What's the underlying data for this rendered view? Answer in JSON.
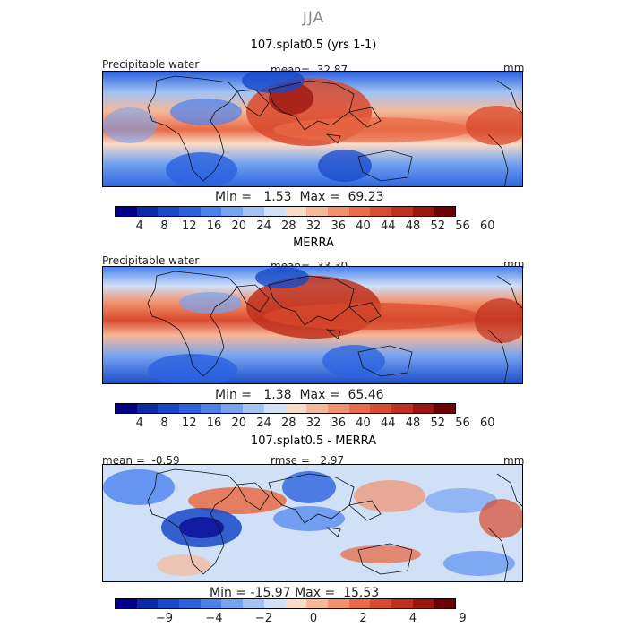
{
  "season": "JJA",
  "panels": [
    {
      "title": "107.splat0.5 (yrs 1-1)",
      "left_label": "Precipitable water",
      "center_label": "mean=",
      "center_value": "32.87",
      "unit": "mm",
      "min_label": "Min =",
      "min_value": "1.53",
      "max_label": "Max =",
      "max_value": "69.23",
      "ticks": [
        "4",
        "8",
        "12",
        "16",
        "20",
        "24",
        "28",
        "32",
        "36",
        "40",
        "44",
        "48",
        "52",
        "56",
        "60"
      ]
    },
    {
      "title": "MERRA",
      "left_label": "Precipitable water",
      "center_label": "mean=",
      "center_value": "33.30",
      "unit": "mm",
      "min_label": "Min =",
      "min_value": "1.38",
      "max_label": "Max =",
      "max_value": "65.46",
      "ticks": [
        "4",
        "8",
        "12",
        "16",
        "20",
        "24",
        "28",
        "32",
        "36",
        "40",
        "44",
        "48",
        "52",
        "56",
        "60"
      ]
    },
    {
      "title": "107.splat0.5 - MERRA",
      "left_label": "mean =",
      "left_value": "-0.59",
      "center_label": "rmse =",
      "center_value": "2.97",
      "unit": "mm",
      "min_label": "Min =",
      "min_value": "-15.97",
      "max_label": "Max =",
      "max_value": "15.53",
      "ticks": [
        "−9",
        "−4",
        "−2",
        "0",
        "2",
        "4",
        "9"
      ]
    }
  ],
  "colors": {
    "scale": [
      "#00008b",
      "#0a2aa8",
      "#1748c8",
      "#2a62de",
      "#4a82ee",
      "#77a4f2",
      "#a3c3f5",
      "#cfe0f7",
      "#f9dcc8",
      "#f6b898",
      "#f1926c",
      "#e96b47",
      "#d94a2e",
      "#c0301d",
      "#9c1610",
      "#6e0000"
    ]
  }
}
